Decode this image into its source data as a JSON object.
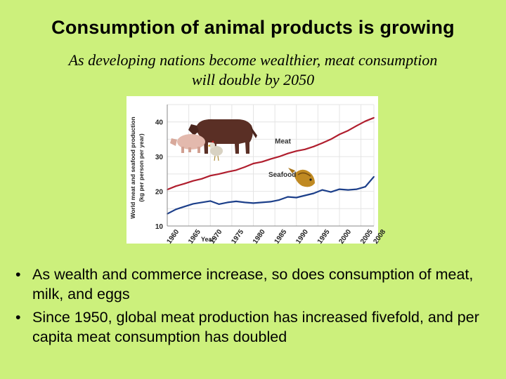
{
  "slide": {
    "title": "Consumption of animal products is growing",
    "subtitle_line1": "As developing nations become wealthier, meat consumption",
    "subtitle_line2": "will double by 2050",
    "bullets": [
      "As wealth and commerce increase, so does consumption of meat, milk, and eggs",
      "Since 1950, global meat production has increased fivefold, and per capita meat consumption has doubled"
    ]
  },
  "chart_data": {
    "type": "line",
    "xlabel": "Year",
    "ylabel_line1": "World meat and seafood production",
    "ylabel_line2": "(kg per person per year)",
    "xlim": [
      1960,
      2008
    ],
    "ylim": [
      10,
      45
    ],
    "xticks": [
      "1960",
      "1965",
      "1970",
      "1975",
      "1980",
      "1985",
      "1990",
      "1995",
      "2000",
      "2005",
      "2008"
    ],
    "yticks": [
      10,
      20,
      30,
      40
    ],
    "grid": true,
    "legend": "inline-labels",
    "series": [
      {
        "name": "Meat",
        "color": "#b01e2e",
        "x": [
          1960,
          1962,
          1964,
          1966,
          1968,
          1970,
          1972,
          1974,
          1976,
          1978,
          1980,
          1982,
          1984,
          1986,
          1988,
          1990,
          1992,
          1994,
          1996,
          1998,
          2000,
          2002,
          2004,
          2006,
          2008
        ],
        "values": [
          20.5,
          21.5,
          22.2,
          23.0,
          23.6,
          24.5,
          25.0,
          25.6,
          26.1,
          27.0,
          28.0,
          28.5,
          29.3,
          30.0,
          30.9,
          31.6,
          32.1,
          32.9,
          33.9,
          35.0,
          36.4,
          37.5,
          38.9,
          40.2,
          41.2
        ]
      },
      {
        "name": "Seafood",
        "color": "#1c3f8a",
        "x": [
          1960,
          1962,
          1964,
          1966,
          1968,
          1970,
          1972,
          1974,
          1976,
          1978,
          1980,
          1982,
          1984,
          1986,
          1988,
          1990,
          1992,
          1994,
          1996,
          1998,
          2000,
          2002,
          2004,
          2006,
          2008
        ],
        "values": [
          13.5,
          14.8,
          15.6,
          16.4,
          16.8,
          17.2,
          16.3,
          16.8,
          17.1,
          16.8,
          16.6,
          16.8,
          17.0,
          17.5,
          18.4,
          18.2,
          18.8,
          19.4,
          20.4,
          19.8,
          20.6,
          20.4,
          20.6,
          21.3,
          24.2
        ]
      }
    ]
  },
  "colors": {
    "background": "#ccf07c",
    "cow": "#5a2f25",
    "pig": "#e3b9ad",
    "chicken": "#d8d2c2",
    "fish": "#c08a22"
  },
  "icons": [
    "cow-icon",
    "pig-icon",
    "chicken-icon",
    "fish-icon"
  ]
}
